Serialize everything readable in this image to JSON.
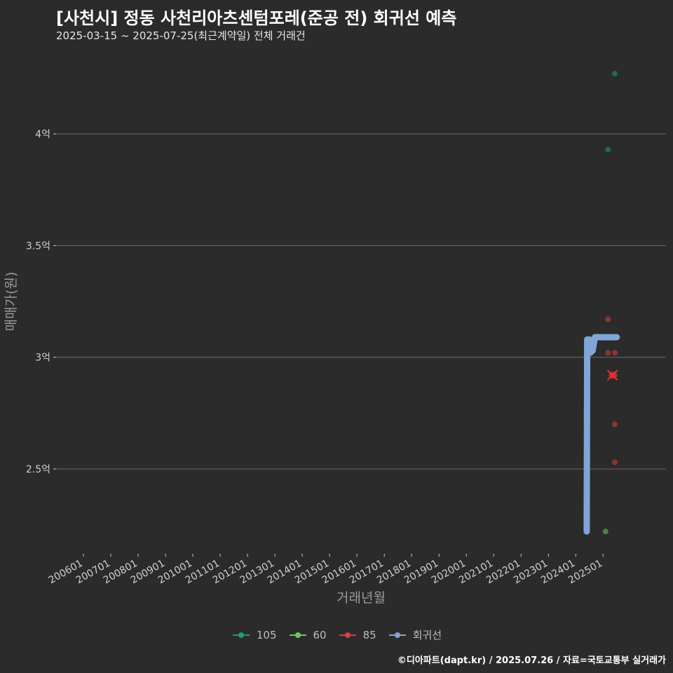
{
  "header": {
    "title": "[사천시] 정동 사천리아츠센텀포레(준공 전) 회귀선 예측",
    "subtitle": "2025-03-15 ~ 2025-07-25(최근계약일) 전체 거래건"
  },
  "credit": "©디아파트(dapt.kr) / 2025.07.26 / 자료=국토교통부 실거래가",
  "legend": [
    {
      "label": "105",
      "color": "#1b9e77"
    },
    {
      "label": "60",
      "color": "#66cc55"
    },
    {
      "label": "85",
      "color": "#d94040"
    },
    {
      "label": "회귀선",
      "color": "#7fa6d6"
    }
  ],
  "chart_data": {
    "type": "scatter",
    "title": "[사천시] 정동 사천리아츠센텀포레(준공 전) 회귀선 예측",
    "xlabel": "거래년월",
    "ylabel": "매매가(원)",
    "x_tick_labels": [
      "200601",
      "200701",
      "200801",
      "200901",
      "201001",
      "201101",
      "201201",
      "201301",
      "201401",
      "201501",
      "201601",
      "201701",
      "201801",
      "201901",
      "202001",
      "202101",
      "202201",
      "202301",
      "202401",
      "202501"
    ],
    "y_ticks": [
      {
        "value": 2.5,
        "label": "2.5억"
      },
      {
        "value": 3.0,
        "label": "3억"
      },
      {
        "value": 3.5,
        "label": "3.5억"
      },
      {
        "value": 4.0,
        "label": "4억"
      }
    ],
    "xlim": [
      2005.0,
      2027.3
    ],
    "ylim": [
      2.12,
      4.38
    ],
    "grid": "horizontal",
    "legend_position": "bottom",
    "series": [
      {
        "name": "105",
        "color": "#1b9e77",
        "points": [
          [
            2025.43,
            4.27
          ],
          [
            2025.18,
            3.93
          ]
        ]
      },
      {
        "name": "60",
        "color": "#66cc55",
        "points": [
          [
            2025.09,
            2.22
          ]
        ]
      },
      {
        "name": "85",
        "color": "#d94040",
        "points": [
          [
            2025.18,
            3.17
          ],
          [
            2025.18,
            3.02
          ],
          [
            2025.43,
            3.02
          ],
          [
            2025.34,
            2.92
          ],
          [
            2025.43,
            2.92
          ],
          [
            2025.43,
            2.7
          ],
          [
            2025.43,
            2.53
          ]
        ]
      }
    ],
    "regression": {
      "name": "회귀선",
      "color": "#7fa6d6",
      "points": [
        [
          2024.4,
          2.22
        ],
        [
          2024.42,
          3.08
        ],
        [
          2024.5,
          3.08
        ],
        [
          2024.53,
          3.02
        ],
        [
          2024.62,
          3.03
        ],
        [
          2024.7,
          3.09
        ],
        [
          2025.5,
          3.09
        ]
      ]
    }
  }
}
